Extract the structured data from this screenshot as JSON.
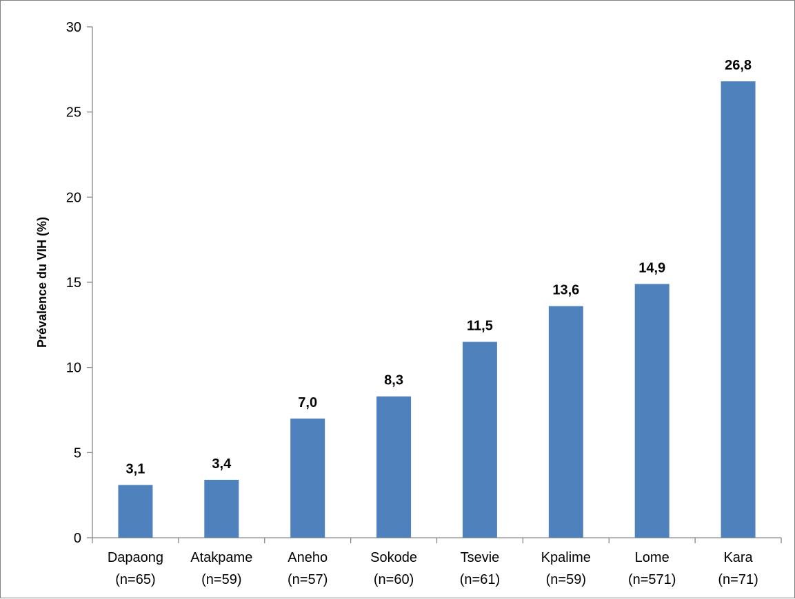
{
  "chart_data": {
    "type": "bar",
    "title": "",
    "xlabel": "",
    "ylabel": "Prévalence du VIH (%)",
    "ylim": [
      0,
      30
    ],
    "yticks": [
      "0",
      "5",
      "10",
      "15",
      "20",
      "25",
      "30"
    ],
    "grid": false,
    "legend": "none",
    "categories": [
      {
        "name": "Dapaong",
        "n": "(n=65)"
      },
      {
        "name": "Atakpame",
        "n": "(n=59)"
      },
      {
        "name": "Aneho",
        "n": "(n=57)"
      },
      {
        "name": "Sokode",
        "n": "(n=60)"
      },
      {
        "name": "Tsevie",
        "n": "(n=61)"
      },
      {
        "name": "Kpalime",
        "n": "(n=59)"
      },
      {
        "name": "Lome",
        "n": "(n=571)"
      },
      {
        "name": "Kara",
        "n": "(n=71)"
      }
    ],
    "values": [
      3.1,
      3.4,
      7.0,
      8.3,
      11.5,
      13.6,
      14.9,
      26.8
    ],
    "value_labels": [
      "3,1",
      "3,4",
      "7,0",
      "8,3",
      "11,5",
      "13,6",
      "14,9",
      "26,8"
    ],
    "bar_color": "#4F81BD",
    "axis_color": "#868686"
  }
}
